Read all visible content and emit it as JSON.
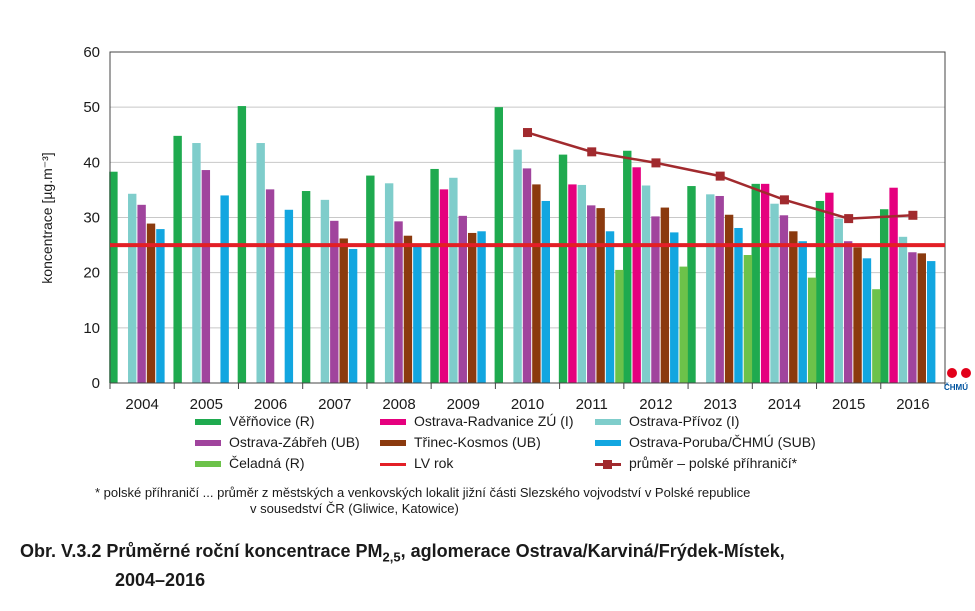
{
  "chart_data": {
    "type": "bar",
    "ylabel": "koncentrace [µg.m⁻³]",
    "ylim": [
      0,
      60
    ],
    "yticks": [
      "0",
      "10",
      "20",
      "30",
      "40",
      "50",
      "60"
    ],
    "categories": [
      "2004",
      "2005",
      "2006",
      "2007",
      "2008",
      "2009",
      "2010",
      "2011",
      "2012",
      "2013",
      "2014",
      "2015",
      "2016"
    ],
    "series": [
      {
        "name": "Věřňovice (R)",
        "color": "#1faa4f",
        "values": [
          38.3,
          44.8,
          50.2,
          34.8,
          37.6,
          38.8,
          50.0,
          41.4,
          42.1,
          35.7,
          36.1,
          33.0,
          31.5
        ]
      },
      {
        "name": "Ostrava-Radvanice ZÚ (I)",
        "color": "#e5007e",
        "values": [
          null,
          null,
          null,
          null,
          null,
          35.1,
          null,
          36.0,
          39.1,
          null,
          36.1,
          34.5,
          35.4
        ]
      },
      {
        "name": "Ostrava-Přívoz (I)",
        "color": "#7fcdcb",
        "values": [
          34.3,
          43.5,
          43.5,
          33.2,
          36.2,
          37.2,
          42.3,
          35.9,
          35.8,
          34.2,
          32.5,
          29.8,
          26.5
        ]
      },
      {
        "name": "Ostrava-Zábřeh (UB)",
        "color": "#a0449d",
        "values": [
          32.3,
          38.6,
          35.1,
          29.4,
          29.3,
          30.3,
          38.9,
          32.2,
          30.2,
          33.9,
          30.4,
          25.7,
          23.7
        ]
      },
      {
        "name": "Třinec-Kosmos (UB)",
        "color": "#8b3a0e",
        "values": [
          28.9,
          null,
          null,
          26.2,
          26.7,
          27.2,
          36.0,
          31.7,
          31.8,
          30.5,
          27.5,
          24.6,
          23.5
        ]
      },
      {
        "name": "Ostrava-Poruba/ČHMÚ (SUB)",
        "color": "#12a6e0",
        "values": [
          27.9,
          34.0,
          31.4,
          24.3,
          24.8,
          27.5,
          33.0,
          27.5,
          27.3,
          28.1,
          25.7,
          22.6,
          22.1
        ]
      },
      {
        "name": "Čeladná (R)",
        "color": "#6cc24a",
        "values": [
          null,
          null,
          null,
          null,
          null,
          null,
          null,
          20.5,
          21.1,
          23.2,
          19.1,
          17.0,
          null
        ]
      }
    ],
    "lines": [
      {
        "name": "LV rok",
        "color": "#e31f26",
        "type": "hline",
        "value": 25
      },
      {
        "name": "průměr – polské příhraničí*",
        "color": "#a12a2e",
        "type": "line-markers",
        "x": [
          "2010",
          "2011",
          "2012",
          "2013",
          "2014",
          "2015",
          "2016"
        ],
        "values": [
          45.4,
          41.9,
          39.9,
          37.5,
          33.2,
          29.8,
          30.4
        ]
      }
    ]
  },
  "legend": [
    {
      "label": "Věřňovice (R)",
      "color": "#1faa4f",
      "kind": "bar"
    },
    {
      "label": "Ostrava-Radvanice ZÚ (I)",
      "color": "#e5007e",
      "kind": "bar"
    },
    {
      "label": "Ostrava-Přívoz (I)",
      "color": "#7fcdcb",
      "kind": "bar"
    },
    {
      "label": "Ostrava-Zábřeh (UB)",
      "color": "#a0449d",
      "kind": "bar"
    },
    {
      "label": "Třinec-Kosmos (UB)",
      "color": "#8b3a0e",
      "kind": "bar"
    },
    {
      "label": "Ostrava-Poruba/ČHMÚ (SUB)",
      "color": "#12a6e0",
      "kind": "bar"
    },
    {
      "label": "Čeladná (R)",
      "color": "#6cc24a",
      "kind": "bar"
    },
    {
      "label": "LV rok",
      "color": "#e31f26",
      "kind": "line"
    },
    {
      "label": "průměr – polské příhraničí*",
      "color": "#a12a2e",
      "kind": "line-marker"
    }
  ],
  "footnote": {
    "line1": "* polské příhraničí ... průměr z městských a venkovských lokalit jižní části Slezského vojvodství v Polské republice",
    "line2": "v sousedství ČR (Gliwice, Katowice)"
  },
  "caption": {
    "prefix": "Obr. V.3.2  Průměrné roční koncentrace PM",
    "subscript": "2,5",
    "suffix": ", aglomerace Ostrava/Karviná/Frýdek-Místek,",
    "line2": "2004–2016"
  },
  "logo": {
    "text": "ČHMÚ",
    "icon": "chmu-logo-icon"
  }
}
